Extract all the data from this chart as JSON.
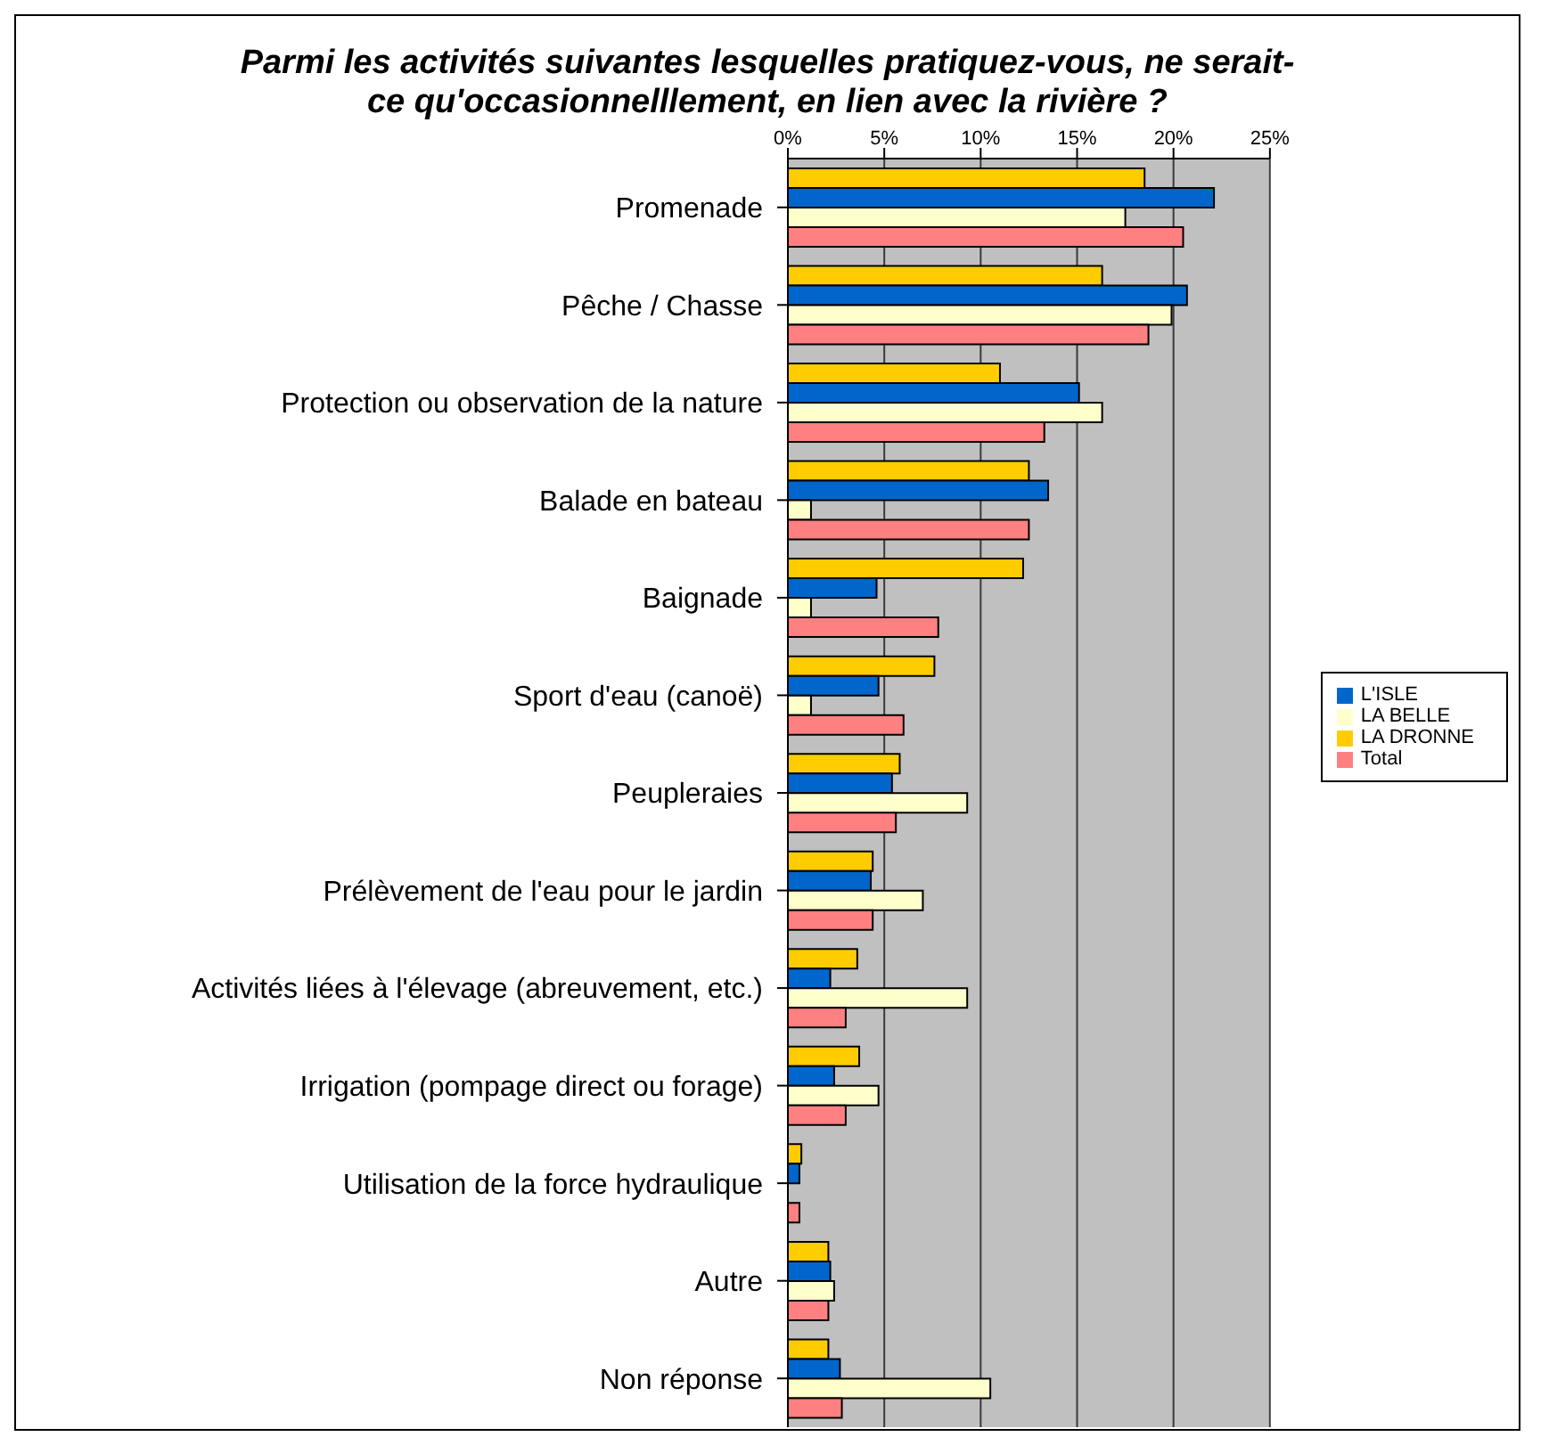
{
  "chart_data": {
    "type": "bar",
    "orientation": "horizontal",
    "title": "Parmi les activités suivantes lesquelles pratiquez-vous, ne serait-ce qu'occasionnelllement, en lien avec la rivière ?",
    "categories": [
      "Promenade",
      "Pêche / Chasse",
      "Protection ou observation de la nature",
      "Balade en bateau",
      "Baignade",
      "Sport d'eau (canoë)",
      "Peupleraies",
      "Prélèvement de l'eau pour le jardin",
      "Activités liées à l'élevage (abreuvement, etc.)",
      "Irrigation (pompage direct ou forage)",
      "Utilisation de la force hydraulique",
      "Autre",
      "Non réponse"
    ],
    "series": [
      {
        "name": "LA DRONNE",
        "color": "#ffcc00",
        "values": [
          18.5,
          16.3,
          11.0,
          12.5,
          12.2,
          7.6,
          5.8,
          4.4,
          3.6,
          3.7,
          0.7,
          2.1,
          2.1
        ]
      },
      {
        "name": "L'ISLE",
        "color": "#0066cc",
        "values": [
          22.1,
          20.7,
          15.1,
          13.5,
          4.6,
          4.7,
          5.4,
          4.3,
          2.2,
          2.4,
          0.6,
          2.2,
          2.7
        ]
      },
      {
        "name": "LA BELLE",
        "color": "#ffffcc",
        "values": [
          17.5,
          19.9,
          16.3,
          1.2,
          1.2,
          1.2,
          9.3,
          7.0,
          9.3,
          4.7,
          null,
          2.4,
          10.5
        ]
      },
      {
        "name": "Total",
        "color": "#ff8080",
        "values": [
          20.5,
          18.7,
          13.3,
          12.5,
          7.8,
          6.0,
          5.6,
          4.4,
          3.0,
          3.0,
          0.6,
          2.1,
          2.8
        ]
      }
    ],
    "xlim": [
      0,
      25
    ],
    "xticks": [
      {
        "value": 0,
        "label": "0%"
      },
      {
        "value": 5,
        "label": "5%"
      },
      {
        "value": 10,
        "label": "10%"
      },
      {
        "value": 15,
        "label": "15%"
      },
      {
        "value": 20,
        "label": "20%"
      },
      {
        "value": 25,
        "label": "25%"
      }
    ],
    "grid": "x",
    "legend": "right"
  }
}
